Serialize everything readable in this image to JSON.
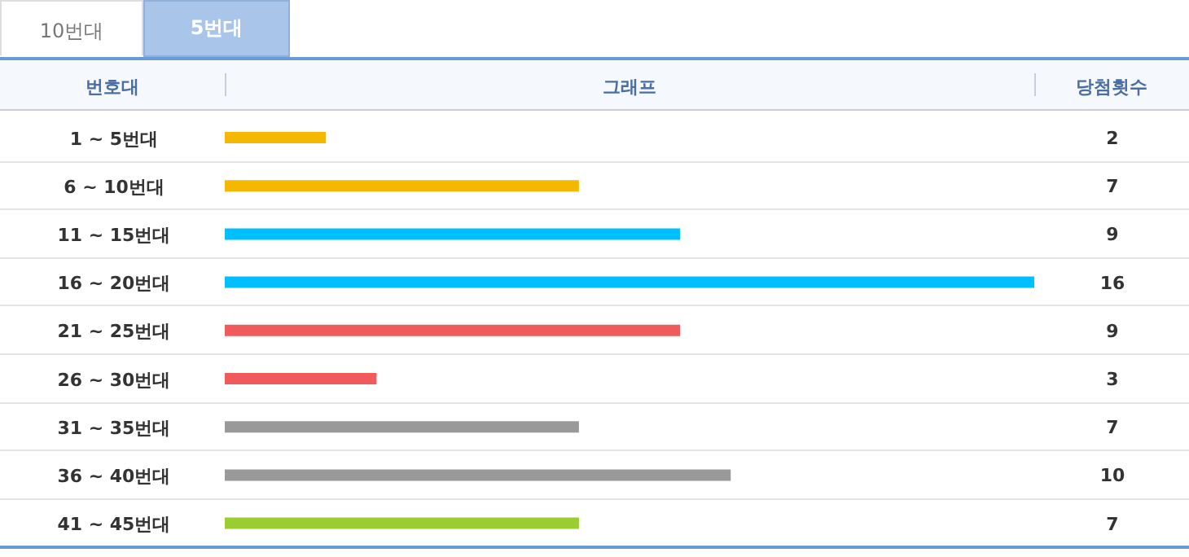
{
  "chart_data": {
    "type": "bar",
    "orientation": "horizontal",
    "data_labels": true,
    "categories": [
      "1 ~ 5번대",
      "6 ~ 10번대",
      "11 ~ 15번대",
      "16 ~ 20번대",
      "21 ~ 25번대",
      "26 ~ 30번대",
      "31 ~ 35번대",
      "36 ~ 40번대",
      "41 ~ 45번대"
    ],
    "values": [
      2,
      7,
      9,
      16,
      9,
      3,
      7,
      10,
      7
    ],
    "colors": [
      "#f5b800",
      "#f5b800",
      "#00bfff",
      "#00bfff",
      "#f05a5a",
      "#f05a5a",
      "#999999",
      "#999999",
      "#9acd32"
    ],
    "annotations": [
      "10번대",
      "5번대",
      "번호대",
      "그래프",
      "당첨횟수"
    ]
  }
}
